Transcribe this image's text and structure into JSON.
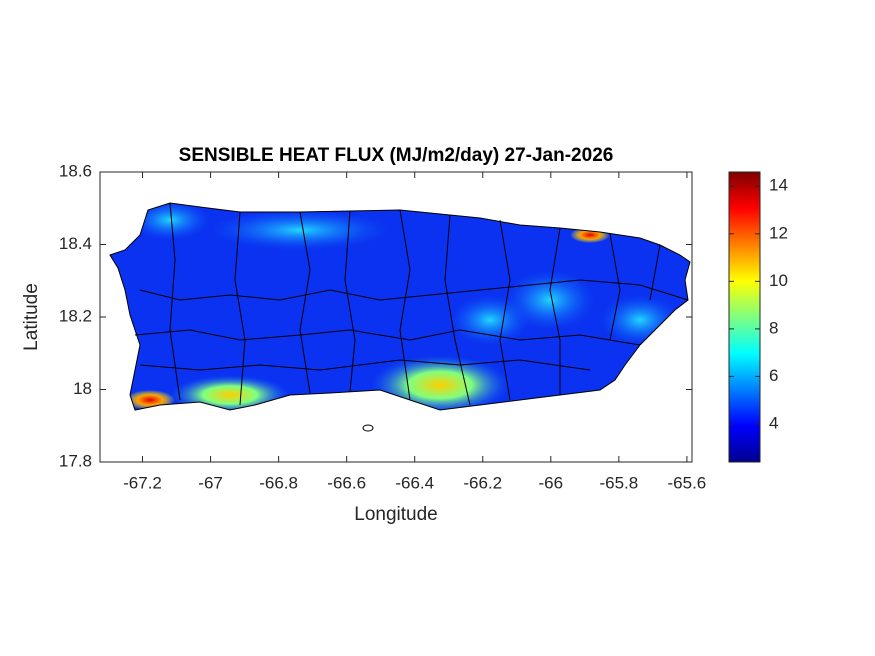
{
  "chart_data": {
    "type": "map",
    "title": "SENSIBLE HEAT FLUX (MJ/m2/day) 27-Jan-2026",
    "xlabel": "Longitude",
    "ylabel": "Latitude",
    "xlim": [
      -67.325,
      -65.585
    ],
    "ylim": [
      17.8,
      18.6
    ],
    "xticks": [
      -67.2,
      -67,
      -66.8,
      -66.6,
      -66.4,
      -66.2,
      -66,
      -65.8,
      -65.6
    ],
    "yticks": [
      17.8,
      18,
      18.2,
      18.4,
      18.6
    ],
    "colormap": "jet",
    "colorbar": {
      "clim": [
        2.4,
        14.6
      ],
      "ticks": [
        4,
        6,
        8,
        10,
        12,
        14
      ]
    }
  }
}
